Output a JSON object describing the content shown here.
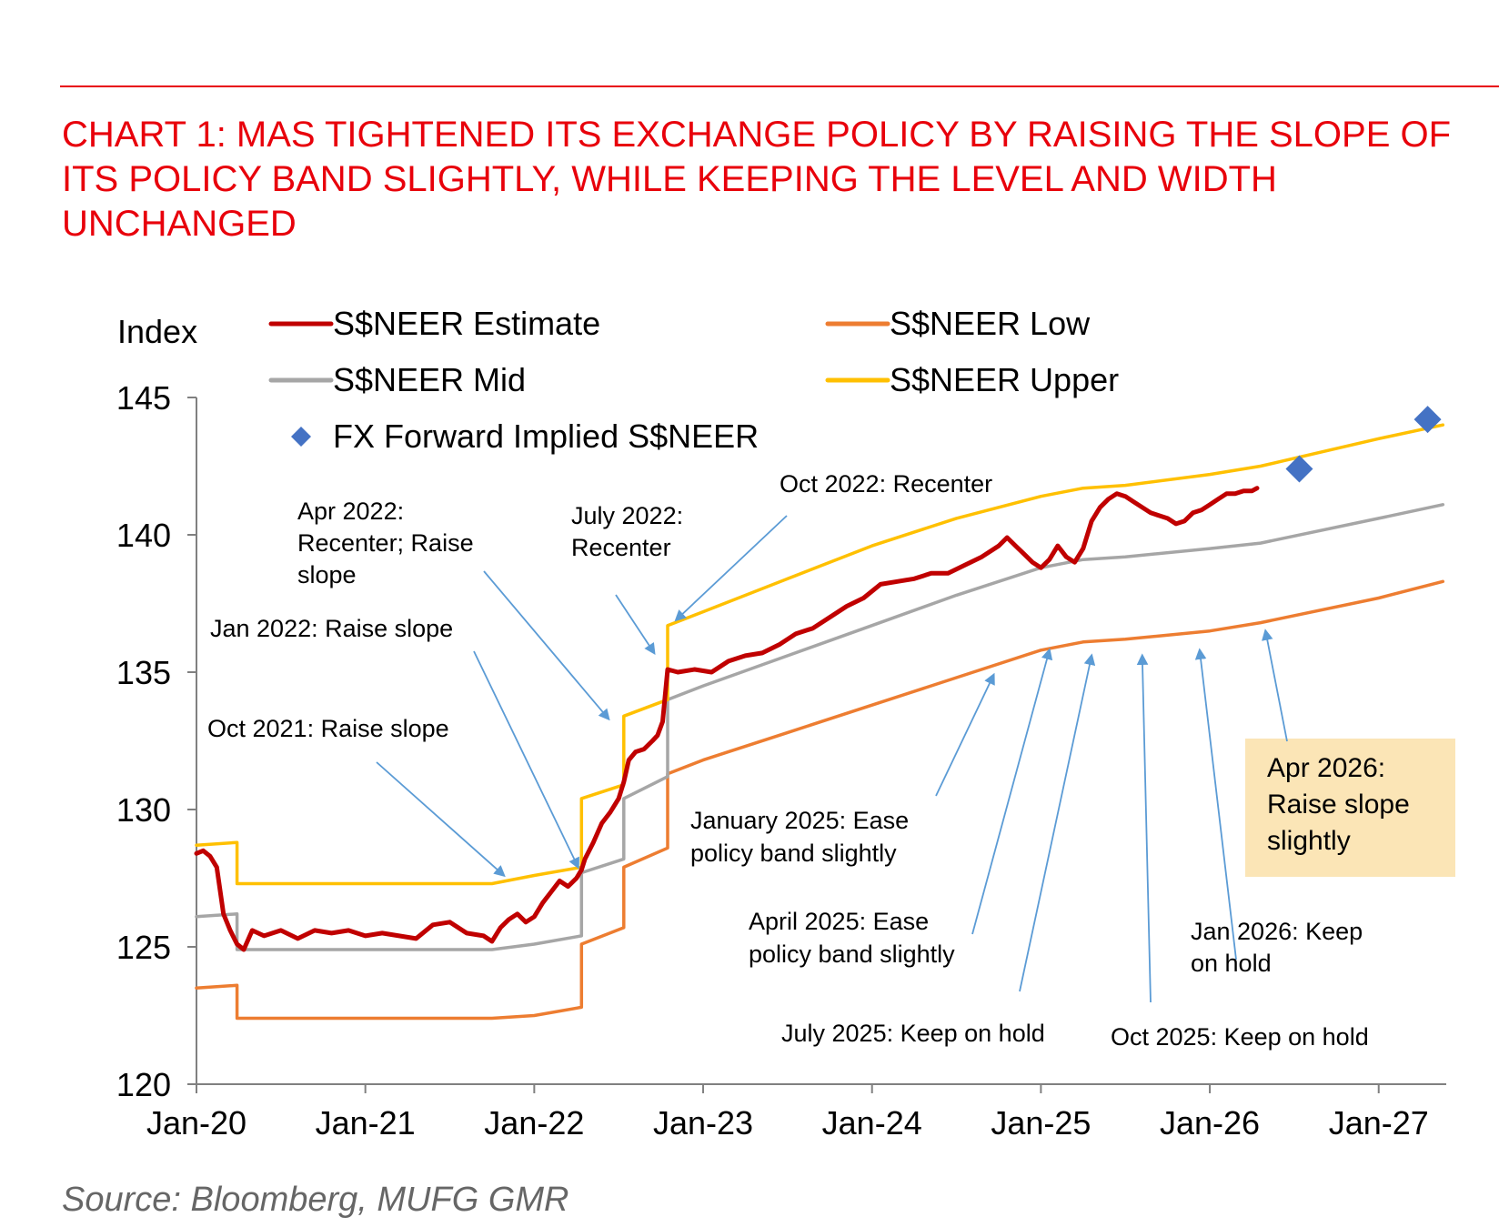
{
  "title": "CHART 1: MAS TIGHTENED ITS EXCHANGE POLICY BY RAISING THE SLOPE OF ITS POLICY BAND SLIGHTLY, WHILE KEEPING THE LEVEL AND WIDTH UNCHANGED",
  "source": "Source: Bloomberg, MUFG GMR",
  "colors": {
    "title": "#e8000b",
    "estimate": "#c00000",
    "mid": "#a6a6a6",
    "low": "#ed7d31",
    "upper": "#ffc000",
    "forward": "#4472c4",
    "arrow": "#5b9bd5",
    "highlight_box": "#fbe5b6"
  },
  "chart_data": {
    "type": "line",
    "title": "CHART 1: MAS TIGHTENED ITS EXCHANGE POLICY BY RAISING THE SLOPE OF ITS POLICY BAND SLIGHTLY, WHILE KEEPING THE LEVEL AND WIDTH UNCHANGED",
    "ylabel": "Index",
    "xlabel": "",
    "ylim": [
      120,
      145
    ],
    "xlim": [
      2020.0,
      2027.4
    ],
    "yticks": [
      120,
      125,
      130,
      135,
      140,
      145
    ],
    "xticks": [
      {
        "value": 2020,
        "label": "Jan-20"
      },
      {
        "value": 2021,
        "label": "Jan-21"
      },
      {
        "value": 2022,
        "label": "Jan-22"
      },
      {
        "value": 2023,
        "label": "Jan-23"
      },
      {
        "value": 2024,
        "label": "Jan-24"
      },
      {
        "value": 2025,
        "label": "Jan-25"
      },
      {
        "value": 2026,
        "label": "Jan-26"
      },
      {
        "value": 2027,
        "label": "Jan-27"
      }
    ],
    "series": [
      {
        "name": "S$NEER Estimate",
        "key": "estimate",
        "points": [
          [
            2020.0,
            128.4
          ],
          [
            2020.04,
            128.5
          ],
          [
            2020.08,
            128.3
          ],
          [
            2020.12,
            127.9
          ],
          [
            2020.16,
            126.2
          ],
          [
            2020.2,
            125.6
          ],
          [
            2020.24,
            125.1
          ],
          [
            2020.28,
            124.9
          ],
          [
            2020.33,
            125.6
          ],
          [
            2020.4,
            125.4
          ],
          [
            2020.5,
            125.6
          ],
          [
            2020.6,
            125.3
          ],
          [
            2020.7,
            125.6
          ],
          [
            2020.8,
            125.5
          ],
          [
            2020.9,
            125.6
          ],
          [
            2021.0,
            125.4
          ],
          [
            2021.1,
            125.5
          ],
          [
            2021.2,
            125.4
          ],
          [
            2021.3,
            125.3
          ],
          [
            2021.4,
            125.8
          ],
          [
            2021.5,
            125.9
          ],
          [
            2021.6,
            125.5
          ],
          [
            2021.7,
            125.4
          ],
          [
            2021.75,
            125.2
          ],
          [
            2021.8,
            125.7
          ],
          [
            2021.85,
            126.0
          ],
          [
            2021.9,
            126.2
          ],
          [
            2021.95,
            125.9
          ],
          [
            2022.0,
            126.1
          ],
          [
            2022.05,
            126.6
          ],
          [
            2022.1,
            127.0
          ],
          [
            2022.15,
            127.4
          ],
          [
            2022.2,
            127.2
          ],
          [
            2022.25,
            127.5
          ],
          [
            2022.28,
            127.8
          ],
          [
            2022.3,
            128.2
          ],
          [
            2022.35,
            128.8
          ],
          [
            2022.4,
            129.5
          ],
          [
            2022.45,
            129.9
          ],
          [
            2022.5,
            130.4
          ],
          [
            2022.53,
            131.0
          ],
          [
            2022.56,
            131.8
          ],
          [
            2022.6,
            132.1
          ],
          [
            2022.65,
            132.2
          ],
          [
            2022.7,
            132.5
          ],
          [
            2022.73,
            132.7
          ],
          [
            2022.76,
            133.2
          ],
          [
            2022.79,
            135.1
          ],
          [
            2022.85,
            135.0
          ],
          [
            2022.95,
            135.1
          ],
          [
            2023.05,
            135.0
          ],
          [
            2023.15,
            135.4
          ],
          [
            2023.25,
            135.6
          ],
          [
            2023.35,
            135.7
          ],
          [
            2023.45,
            136.0
          ],
          [
            2023.55,
            136.4
          ],
          [
            2023.65,
            136.6
          ],
          [
            2023.75,
            137.0
          ],
          [
            2023.85,
            137.4
          ],
          [
            2023.95,
            137.7
          ],
          [
            2024.05,
            138.2
          ],
          [
            2024.15,
            138.3
          ],
          [
            2024.25,
            138.4
          ],
          [
            2024.35,
            138.6
          ],
          [
            2024.45,
            138.6
          ],
          [
            2024.55,
            138.9
          ],
          [
            2024.65,
            139.2
          ],
          [
            2024.75,
            139.6
          ],
          [
            2024.8,
            139.9
          ],
          [
            2024.85,
            139.6
          ],
          [
            2024.9,
            139.3
          ],
          [
            2024.95,
            139.0
          ],
          [
            2025.0,
            138.8
          ],
          [
            2025.05,
            139.1
          ],
          [
            2025.1,
            139.6
          ],
          [
            2025.15,
            139.2
          ],
          [
            2025.2,
            139.0
          ],
          [
            2025.25,
            139.5
          ],
          [
            2025.3,
            140.5
          ],
          [
            2025.35,
            141.0
          ],
          [
            2025.4,
            141.3
          ],
          [
            2025.45,
            141.5
          ],
          [
            2025.5,
            141.4
          ],
          [
            2025.55,
            141.2
          ],
          [
            2025.6,
            141.0
          ],
          [
            2025.65,
            140.8
          ],
          [
            2025.7,
            140.7
          ],
          [
            2025.75,
            140.6
          ],
          [
            2025.8,
            140.4
          ],
          [
            2025.85,
            140.5
          ],
          [
            2025.9,
            140.8
          ],
          [
            2025.95,
            140.9
          ],
          [
            2026.0,
            141.1
          ],
          [
            2026.05,
            141.3
          ],
          [
            2026.1,
            141.5
          ],
          [
            2026.15,
            141.5
          ],
          [
            2026.2,
            141.6
          ],
          [
            2026.25,
            141.6
          ],
          [
            2026.28,
            141.7
          ]
        ]
      },
      {
        "name": "S$NEER Mid",
        "key": "mid",
        "points": [
          [
            2020.0,
            126.1
          ],
          [
            2020.24,
            126.2
          ],
          [
            2020.24,
            124.9
          ],
          [
            2020.5,
            124.9
          ],
          [
            2021.0,
            124.9
          ],
          [
            2021.5,
            124.9
          ],
          [
            2021.75,
            124.9
          ],
          [
            2022.0,
            125.1
          ],
          [
            2022.28,
            125.4
          ],
          [
            2022.28,
            127.7
          ],
          [
            2022.53,
            128.2
          ],
          [
            2022.53,
            130.4
          ],
          [
            2022.79,
            131.2
          ],
          [
            2022.79,
            134.0
          ],
          [
            2023.0,
            134.5
          ],
          [
            2023.5,
            135.6
          ],
          [
            2024.0,
            136.7
          ],
          [
            2024.5,
            137.8
          ],
          [
            2025.0,
            138.8
          ],
          [
            2025.25,
            139.1
          ],
          [
            2025.5,
            139.2
          ],
          [
            2026.0,
            139.5
          ],
          [
            2026.3,
            139.7
          ],
          [
            2027.0,
            140.6
          ],
          [
            2027.38,
            141.1
          ]
        ]
      },
      {
        "name": "S$NEER Low",
        "key": "low",
        "points": [
          [
            2020.0,
            123.5
          ],
          [
            2020.24,
            123.6
          ],
          [
            2020.24,
            122.4
          ],
          [
            2020.5,
            122.4
          ],
          [
            2021.0,
            122.4
          ],
          [
            2021.5,
            122.4
          ],
          [
            2021.75,
            122.4
          ],
          [
            2022.0,
            122.5
          ],
          [
            2022.28,
            122.8
          ],
          [
            2022.28,
            125.1
          ],
          [
            2022.53,
            125.7
          ],
          [
            2022.53,
            127.9
          ],
          [
            2022.79,
            128.6
          ],
          [
            2022.79,
            131.3
          ],
          [
            2023.0,
            131.8
          ],
          [
            2023.5,
            132.8
          ],
          [
            2024.0,
            133.8
          ],
          [
            2024.5,
            134.8
          ],
          [
            2025.0,
            135.8
          ],
          [
            2025.25,
            136.1
          ],
          [
            2025.5,
            136.2
          ],
          [
            2026.0,
            136.5
          ],
          [
            2026.3,
            136.8
          ],
          [
            2027.0,
            137.7
          ],
          [
            2027.38,
            138.3
          ]
        ]
      },
      {
        "name": "S$NEER Upper",
        "key": "upper",
        "points": [
          [
            2020.0,
            128.7
          ],
          [
            2020.24,
            128.8
          ],
          [
            2020.24,
            127.3
          ],
          [
            2020.5,
            127.3
          ],
          [
            2021.0,
            127.3
          ],
          [
            2021.5,
            127.3
          ],
          [
            2021.75,
            127.3
          ],
          [
            2022.0,
            127.6
          ],
          [
            2022.28,
            127.9
          ],
          [
            2022.28,
            130.4
          ],
          [
            2022.53,
            130.9
          ],
          [
            2022.53,
            133.4
          ],
          [
            2022.79,
            134.0
          ],
          [
            2022.79,
            136.7
          ],
          [
            2023.0,
            137.2
          ],
          [
            2023.5,
            138.4
          ],
          [
            2024.0,
            139.6
          ],
          [
            2024.5,
            140.6
          ],
          [
            2025.0,
            141.4
          ],
          [
            2025.25,
            141.7
          ],
          [
            2025.5,
            141.8
          ],
          [
            2026.0,
            142.2
          ],
          [
            2026.3,
            142.5
          ],
          [
            2027.0,
            143.5
          ],
          [
            2027.38,
            144.0
          ]
        ]
      }
    ],
    "forward_points": {
      "name": "FX Forward Implied S$NEER",
      "points": [
        [
          2026.53,
          142.4
        ],
        [
          2027.29,
          144.2
        ]
      ]
    },
    "legend": [
      {
        "key": "estimate",
        "label": "S$NEER Estimate",
        "marker": "line"
      },
      {
        "key": "low",
        "label": "S$NEER Low",
        "marker": "line"
      },
      {
        "key": "mid",
        "label": "S$NEER Mid",
        "marker": "line"
      },
      {
        "key": "upper",
        "label": "S$NEER Upper",
        "marker": "line"
      },
      {
        "key": "forward",
        "label": "FX Forward Implied S$NEER",
        "marker": "diamond"
      }
    ],
    "annotations": [
      {
        "id": "apr-2022",
        "lines": [
          "Apr 2022:",
          "Recenter; Raise",
          "slope"
        ],
        "target": [
          2022.44,
          133.3
        ]
      },
      {
        "id": "jul-2022",
        "lines": [
          "July 2022:",
          "Recenter"
        ],
        "target": [
          2022.71,
          135.7
        ]
      },
      {
        "id": "oct-2022",
        "lines": [
          "Oct 2022: Recenter"
        ],
        "target": [
          2022.84,
          136.9
        ]
      },
      {
        "id": "jan-2022",
        "lines": [
          "Jan 2022: Raise slope"
        ],
        "target": [
          2022.26,
          127.9
        ]
      },
      {
        "id": "oct-2021",
        "lines": [
          "Oct 2021: Raise slope"
        ],
        "target": [
          2021.82,
          127.6
        ]
      },
      {
        "id": "jan-2025",
        "lines": [
          "January 2025: Ease",
          "policy band slightly"
        ],
        "target": [
          2024.72,
          134.9
        ]
      },
      {
        "id": "apr-2025",
        "lines": [
          "April 2025: Ease",
          "policy band slightly"
        ],
        "target": [
          2025.05,
          135.8
        ]
      },
      {
        "id": "jul-2025",
        "lines": [
          "July 2025: Keep on hold"
        ],
        "target": [
          2025.3,
          135.6
        ]
      },
      {
        "id": "oct-2025",
        "lines": [
          "Oct 2025: Keep on hold"
        ],
        "target": [
          2025.6,
          135.6
        ]
      },
      {
        "id": "jan-2026",
        "lines": [
          "Jan 2026: Keep",
          "on hold"
        ],
        "target": [
          2025.94,
          135.8
        ]
      },
      {
        "id": "apr-2026",
        "lines": [
          "Apr 2026:",
          "Raise slope",
          "slightly"
        ],
        "target": [
          2026.33,
          136.5
        ],
        "highlight": true
      }
    ]
  }
}
